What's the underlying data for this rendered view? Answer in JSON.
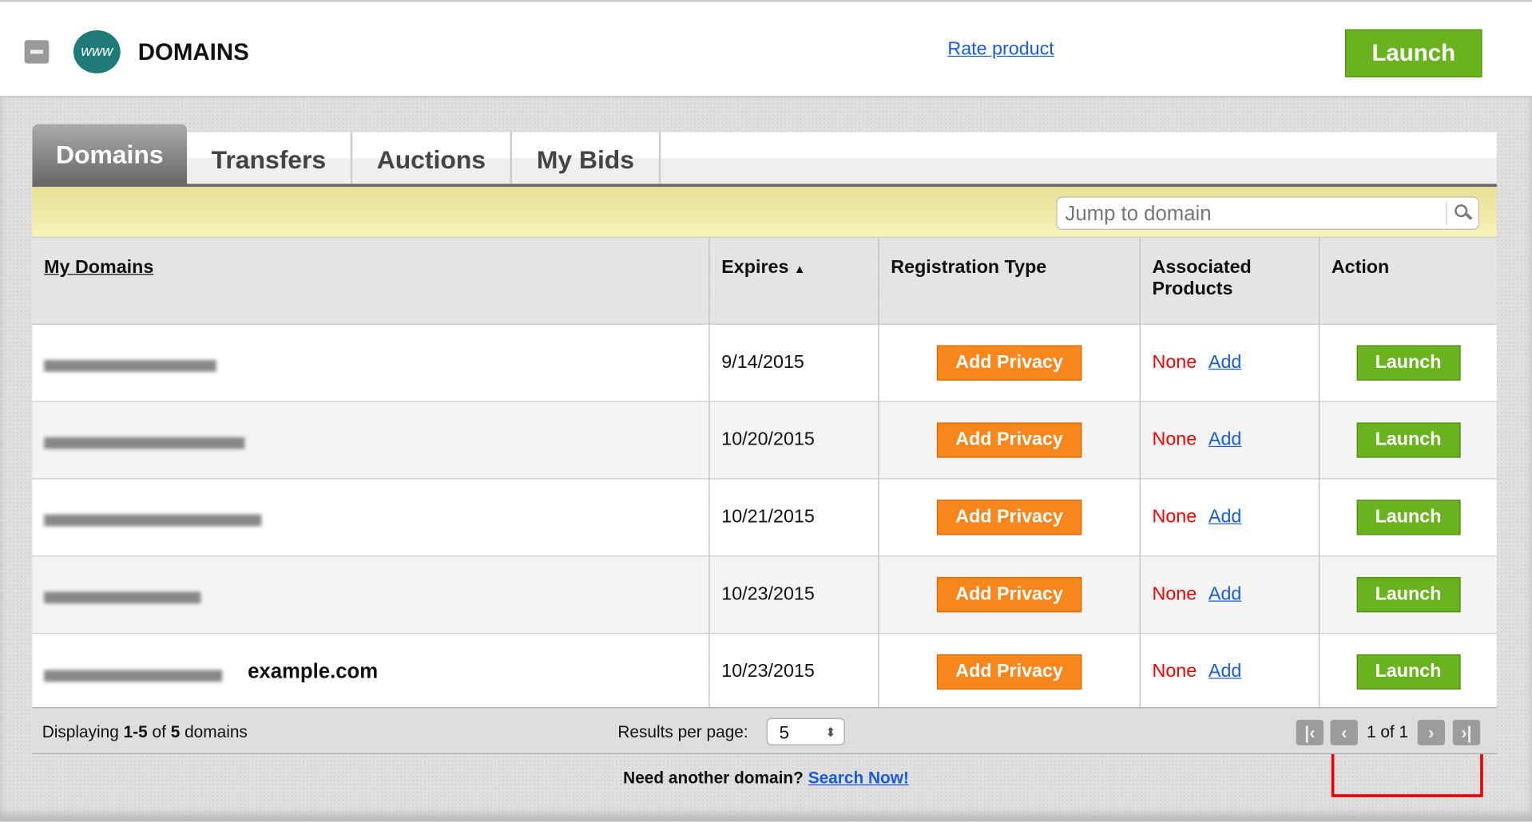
{
  "header": {
    "title": "DOMAINS",
    "globe_text": "www",
    "rate_link": "Rate product",
    "launch": "Launch"
  },
  "tabs": [
    {
      "label": "Domains",
      "active": true
    },
    {
      "label": "Transfers"
    },
    {
      "label": "Auctions"
    },
    {
      "label": "My Bids"
    }
  ],
  "search": {
    "placeholder": "Jump to domain"
  },
  "table": {
    "headers": {
      "domain": "My Domains",
      "expires": "Expires",
      "sort_icon": "▲",
      "regtype": "Registration Type",
      "assoc": "Associated Products",
      "action": "Action"
    },
    "rows": [
      {
        "domain_visible": "",
        "expires": "9/14/2015",
        "privacy": "Add Privacy",
        "assoc": "None",
        "add": "Add",
        "action": "Launch"
      },
      {
        "domain_visible": "",
        "expires": "10/20/2015",
        "privacy": "Add Privacy",
        "assoc": "None",
        "add": "Add",
        "action": "Launch"
      },
      {
        "domain_visible": "",
        "expires": "10/21/2015",
        "privacy": "Add Privacy",
        "assoc": "None",
        "add": "Add",
        "action": "Launch"
      },
      {
        "domain_visible": "",
        "expires": "10/23/2015",
        "privacy": "Add Privacy",
        "assoc": "None",
        "add": "Add",
        "action": "Launch"
      },
      {
        "domain_visible": "example.com",
        "expires": "10/23/2015",
        "privacy": "Add Privacy",
        "assoc": "None",
        "add": "Add",
        "action": "Launch"
      }
    ]
  },
  "footer": {
    "displaying_prefix": "Displaying ",
    "range": "1-5",
    "of": " of ",
    "total": "5",
    "suffix": " domains",
    "results_label": "Results per page:",
    "results_value": "5",
    "page_text": "1 of 1"
  },
  "bottom": {
    "prompt": "Need another domain?",
    "link": "Search Now!"
  },
  "colors": {
    "launch_green": "#6bb31e",
    "privacy_orange": "#f7861d",
    "highlight": "#e00000"
  }
}
